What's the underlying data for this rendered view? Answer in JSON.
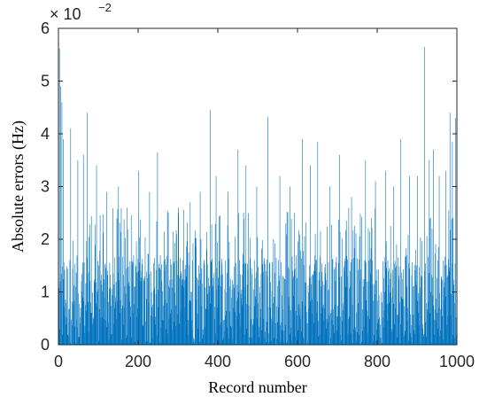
{
  "chart_data": {
    "type": "bar",
    "title": "",
    "xlabel": "Record number",
    "ylabel": "Absolute errors (Hz)",
    "xlim": [
      0,
      1000
    ],
    "ylim": [
      0,
      6
    ],
    "x_ticks": [
      "0",
      "200",
      "400",
      "600",
      "800",
      "1000"
    ],
    "y_ticks": [
      "0",
      "1",
      "2",
      "3",
      "4",
      "5",
      "6"
    ],
    "y_exponent": {
      "base": "× 10",
      "power": "−2"
    },
    "grid": false,
    "series": [
      {
        "color": "#0072BD",
        "note_values_in_units_of_1e-2_Hz": true,
        "peaks": [
          {
            "x": 2,
            "y": 5.62
          },
          {
            "x": 5,
            "y": 4.9
          },
          {
            "x": 8,
            "y": 4.6
          },
          {
            "x": 12,
            "y": 3.9
          },
          {
            "x": 30,
            "y": 4.1
          },
          {
            "x": 48,
            "y": 3.5
          },
          {
            "x": 62,
            "y": 3.6
          },
          {
            "x": 72,
            "y": 4.4
          },
          {
            "x": 95,
            "y": 3.4
          },
          {
            "x": 120,
            "y": 2.9
          },
          {
            "x": 150,
            "y": 3.0
          },
          {
            "x": 172,
            "y": 2.6
          },
          {
            "x": 200,
            "y": 3.3
          },
          {
            "x": 228,
            "y": 2.9
          },
          {
            "x": 248,
            "y": 3.65
          },
          {
            "x": 275,
            "y": 2.5
          },
          {
            "x": 300,
            "y": 2.6
          },
          {
            "x": 330,
            "y": 2.7
          },
          {
            "x": 355,
            "y": 2.9
          },
          {
            "x": 380,
            "y": 4.45
          },
          {
            "x": 395,
            "y": 3.2
          },
          {
            "x": 425,
            "y": 2.9
          },
          {
            "x": 450,
            "y": 3.7
          },
          {
            "x": 470,
            "y": 3.4
          },
          {
            "x": 497,
            "y": 3.0
          },
          {
            "x": 525,
            "y": 4.32
          },
          {
            "x": 555,
            "y": 3.2
          },
          {
            "x": 580,
            "y": 3.0
          },
          {
            "x": 612,
            "y": 3.9
          },
          {
            "x": 632,
            "y": 3.4
          },
          {
            "x": 650,
            "y": 3.85
          },
          {
            "x": 680,
            "y": 3.0
          },
          {
            "x": 705,
            "y": 3.6
          },
          {
            "x": 735,
            "y": 2.8
          },
          {
            "x": 770,
            "y": 3.5
          },
          {
            "x": 795,
            "y": 3.1
          },
          {
            "x": 820,
            "y": 3.3
          },
          {
            "x": 840,
            "y": 3.0
          },
          {
            "x": 858,
            "y": 3.9
          },
          {
            "x": 880,
            "y": 3.2
          },
          {
            "x": 900,
            "y": 3.2
          },
          {
            "x": 918,
            "y": 5.65
          },
          {
            "x": 930,
            "y": 3.5
          },
          {
            "x": 940,
            "y": 3.7
          },
          {
            "x": 955,
            "y": 3.2
          },
          {
            "x": 972,
            "y": 3.3
          },
          {
            "x": 982,
            "y": 4.4
          },
          {
            "x": 988,
            "y": 3.85
          },
          {
            "x": 996,
            "y": 4.3
          }
        ],
        "n_records": 1000,
        "typical_range": [
          0,
          1.7
        ],
        "frequent_max": 2.6
      }
    ]
  }
}
